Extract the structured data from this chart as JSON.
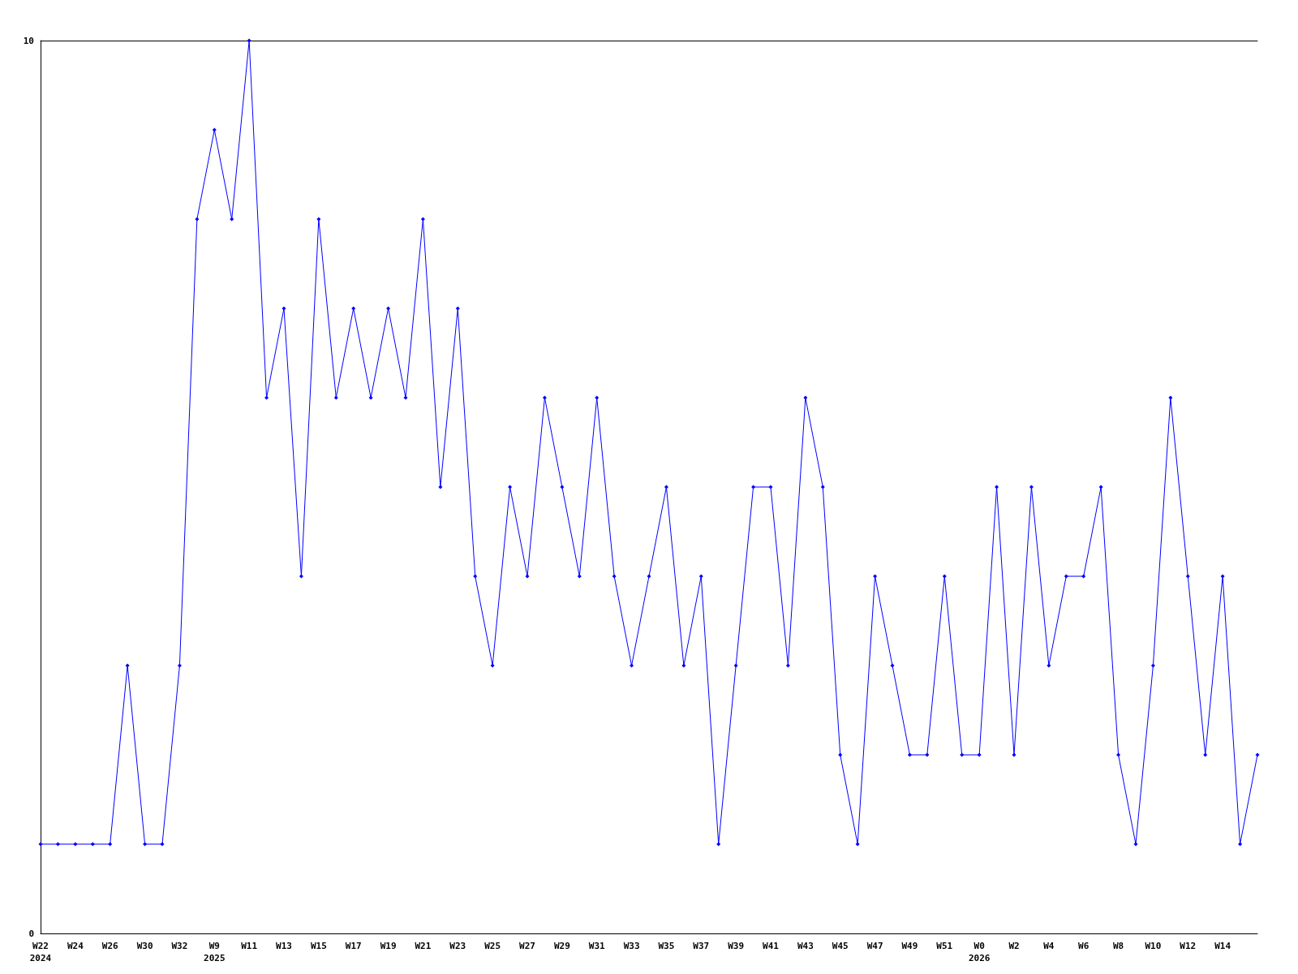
{
  "chart_data": {
    "type": "line",
    "categories": [
      "W22\n2024",
      null,
      "W24",
      null,
      "W26",
      null,
      "W30",
      null,
      "W32",
      null,
      "W9\n2025",
      null,
      "W11",
      null,
      "W13",
      null,
      "W15",
      null,
      "W17",
      null,
      "W19",
      null,
      "W21",
      null,
      "W23",
      null,
      "W25",
      null,
      "W27",
      null,
      "W29",
      null,
      "W31",
      null,
      "W33",
      null,
      "W35",
      null,
      "W37",
      null,
      "W39",
      null,
      "W41",
      null,
      "W43",
      null,
      "W45",
      null,
      "W47",
      null,
      "W49",
      null,
      "W51",
      null,
      "W0\n2026",
      null,
      "W2",
      null,
      "W4",
      null,
      "W6",
      null,
      "W8",
      null,
      "W10",
      null,
      "W12",
      null,
      "W14",
      null,
      null
    ],
    "series": [
      {
        "color": "#0000ff",
        "values": [
          1,
          1,
          1,
          1,
          1,
          3,
          1,
          1,
          3,
          8,
          9,
          8,
          10,
          6,
          7,
          4,
          8,
          6,
          7,
          6,
          7,
          6,
          8,
          5,
          7,
          4,
          3,
          5,
          4,
          6,
          5,
          4,
          6,
          4,
          3,
          4,
          5,
          3,
          4,
          1,
          3,
          5,
          5,
          3,
          6,
          5,
          2,
          1,
          4,
          3,
          2,
          2,
          4,
          2,
          2,
          5,
          2,
          5,
          3,
          4,
          4,
          5,
          2,
          1,
          3,
          6,
          4,
          2,
          4,
          1,
          2
        ]
      }
    ],
    "ylim": [
      0,
      10
    ],
    "yticks": [
      0,
      10
    ],
    "marker": "diamond",
    "line_style": "solid"
  }
}
